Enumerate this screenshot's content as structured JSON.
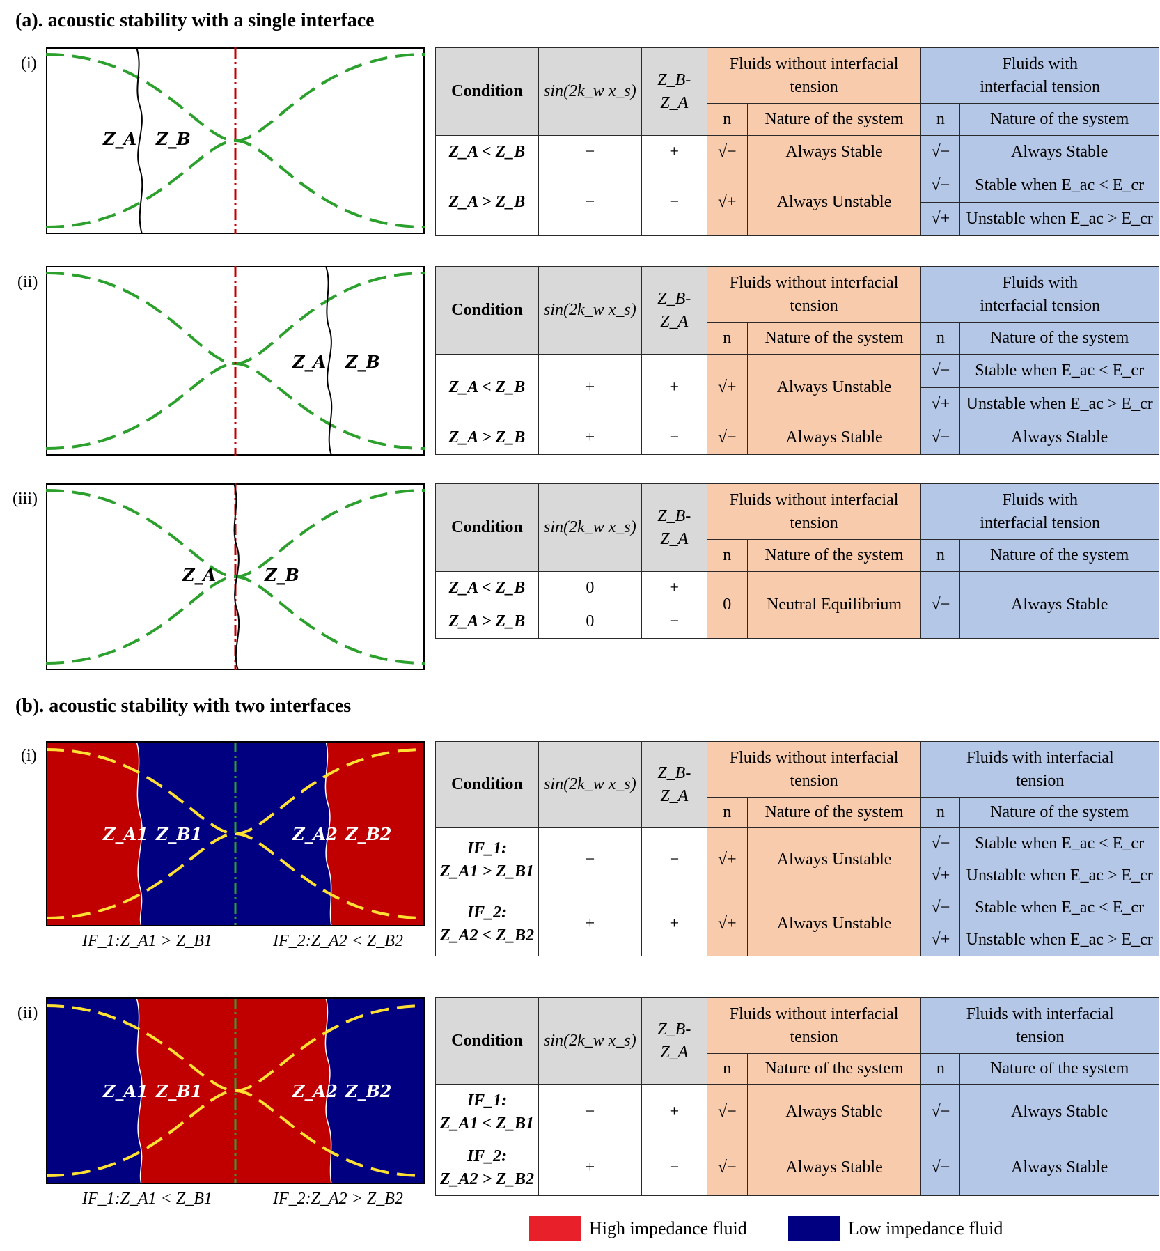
{
  "titles": {
    "a": "(a). acoustic stability with a single interface",
    "b": "(b). acoustic stability with two interfaces"
  },
  "roman": {
    "i": "(i)",
    "ii": "(ii)",
    "iii": "(iii)"
  },
  "headers": {
    "condition": "Condition",
    "sin": "sin(2k_w x_s)",
    "zdiff": "Z_B-Z_A",
    "without_1": "Fluids without interfacial",
    "without_2": "tension",
    "with_a1": "Fluids with",
    "with_a2": "interfacial tension",
    "with_b1": "Fluids with interfacial",
    "with_b2": "tension",
    "n": "n",
    "nature": "Nature of the system"
  },
  "values": {
    "minus": "−",
    "plus": "+",
    "zero": "0",
    "sqrt_minus": "√−",
    "sqrt_plus": "√+",
    "always_stable": "Always Stable",
    "always_unstable": "Always Unstable",
    "neutral": "Neutral Equilibrium",
    "stable_when": "Stable when E_ac < E_cr",
    "unstable_when": "Unstable when E_ac > E_cr"
  },
  "conditions": {
    "za_lt_zb": "Z_A < Z_B",
    "za_gt_zb": "Z_A > Z_B",
    "if1": "IF_1:",
    "if2": "IF_2:",
    "za1_gt_zb1": "Z_A1 > Z_B1",
    "za2_lt_zb2": "Z_A2 < Z_B2",
    "za1_lt_zb1": "Z_A1 < Z_B1",
    "za2_gt_zb2": "Z_A2 > Z_B2"
  },
  "diagram_labels": {
    "za": "Z_A",
    "zb": "Z_B",
    "za1": "Z_A1",
    "zb1": "Z_B1",
    "za2": "Z_A2",
    "zb2": "Z_B2"
  },
  "interface_labels": {
    "bi_left": "IF_1:Z_A1 > Z_B1",
    "bi_right": "IF_2:Z_A2 < Z_B2",
    "bii_left": "IF_1:Z_A1 < Z_B1",
    "bii_right": "IF_2:Z_A2 > Z_B2"
  },
  "legend": {
    "high": "High impedance fluid",
    "low": "Low impedance fluid"
  },
  "colors": {
    "header_gray": "#d9d9d9",
    "orange": "#f8cbad",
    "blue": "#b4c7e7",
    "high_fluid": "#c00000",
    "low_fluid": "#000080",
    "wave_green": "#2ca02c",
    "wave_yellow": "#ffe033",
    "axis_red": "#c00000"
  }
}
